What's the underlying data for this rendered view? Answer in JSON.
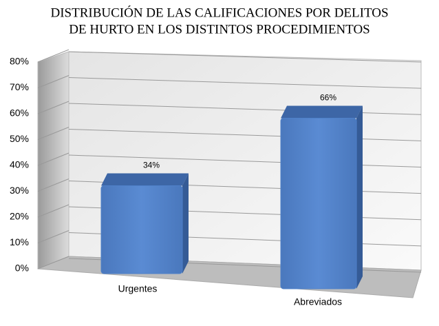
{
  "chart_data": {
    "type": "bar3d",
    "title": [
      "DISTRIBUCIÓN DE LAS CALIFICACIONES POR DELITOS",
      "DE HURTO EN LOS DISTINTOS PROCEDIMIENTOS"
    ],
    "categories": [
      "Urgentes",
      "Abreviados"
    ],
    "values": [
      34,
      66
    ],
    "value_labels": [
      "34%",
      "66%"
    ],
    "color": "#4f81c9",
    "ylim": [
      0,
      80
    ],
    "yticks": [
      {
        "value": 0,
        "label": "0%"
      },
      {
        "value": 10,
        "label": "10%"
      },
      {
        "value": 20,
        "label": "20%"
      },
      {
        "value": 30,
        "label": "30%"
      },
      {
        "value": 40,
        "label": "40%"
      },
      {
        "value": 50,
        "label": "50%"
      },
      {
        "value": 60,
        "label": "60%"
      },
      {
        "value": 70,
        "label": "70%"
      },
      {
        "value": 80,
        "label": "80%"
      }
    ],
    "grid": true
  }
}
